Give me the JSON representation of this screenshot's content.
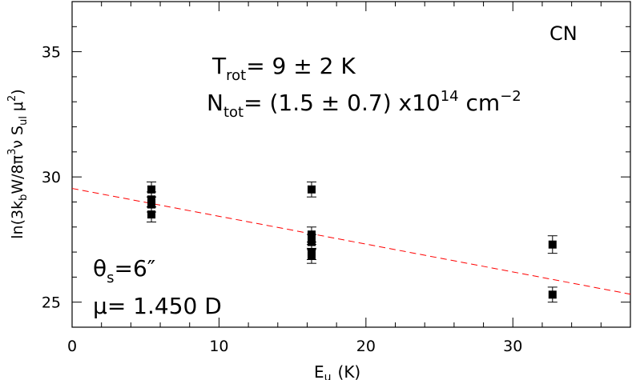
{
  "chart_data": {
    "type": "scatter",
    "label": "CN",
    "xlabel_main": "E",
    "xlabel_sub": "u",
    "xlabel_unit": "(K)",
    "ylabel": {
      "prefix": "ln(3k",
      "sub_b": "b",
      "mid1": "W/8π",
      "sup3a": "3",
      "mid2": "ν S",
      "sub_ul": "ul",
      "mid3": "μ",
      "sup2": "2",
      "suffix": ")"
    },
    "trot": {
      "symbol": "T",
      "sub": "rot",
      "text": "=  9  ±  2  K"
    },
    "ntot": {
      "symbol": "N",
      "sub": "tot",
      "text1": "=  (1.5  ±  0.7)  x10",
      "exp": "14",
      "text2": " cm",
      "exp2": "−2"
    },
    "theta": {
      "symbol": "θ",
      "sub": "s",
      "text": "=6″"
    },
    "mu": {
      "text": "μ=  1.450  D"
    },
    "xlim": [
      0,
      38
    ],
    "ylim": [
      24,
      37
    ],
    "xticks": [
      0,
      10,
      20,
      30
    ],
    "yticks": [
      25,
      30,
      35
    ],
    "points": [
      {
        "x": 5.4,
        "y": 29.5,
        "err": 0.3
      },
      {
        "x": 5.4,
        "y": 29.1,
        "err": 0.3
      },
      {
        "x": 5.4,
        "y": 28.9,
        "err": 0.3
      },
      {
        "x": 5.4,
        "y": 28.5,
        "err": 0.3
      },
      {
        "x": 16.3,
        "y": 29.5,
        "err": 0.3
      },
      {
        "x": 16.3,
        "y": 27.7,
        "err": 0.3
      },
      {
        "x": 16.3,
        "y": 27.4,
        "err": 0.3
      },
      {
        "x": 16.3,
        "y": 27.0,
        "err": 0.3
      },
      {
        "x": 16.3,
        "y": 26.85,
        "err": 0.3
      },
      {
        "x": 32.7,
        "y": 27.3,
        "err": 0.35
      },
      {
        "x": 32.7,
        "y": 25.3,
        "err": 0.3
      }
    ],
    "fit": {
      "intercept": 29.54,
      "slope": -0.1111,
      "color": "#ff0000",
      "style": "dashed"
    }
  }
}
